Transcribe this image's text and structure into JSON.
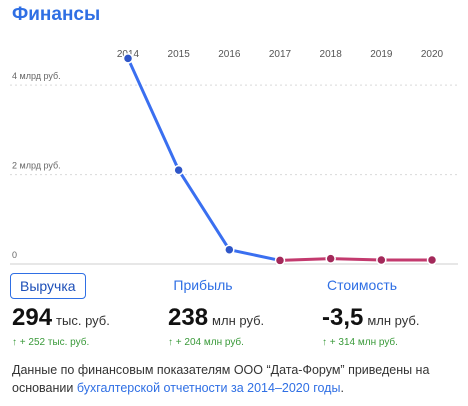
{
  "title": "Финансы",
  "tabs": [
    {
      "label": "Выручка",
      "active": true
    },
    {
      "label": "Прибыль",
      "active": false
    },
    {
      "label": "Стоимость",
      "active": false
    }
  ],
  "metrics": [
    {
      "value": "294",
      "unit": "тыс. руб.",
      "delta": "↑ + 252 тыс. руб."
    },
    {
      "value": "238",
      "unit": "млн руб.",
      "delta": "↑ + 204 млн руб."
    },
    {
      "value": "-3,5",
      "unit": "млн руб.",
      "delta": "↑ + 314 млн руб."
    }
  ],
  "footer": {
    "text": "Данные по финансовым показателям ООО “Дата-Форум” приведены на основании ",
    "link": "бухгалтерской отчетности за 2014–2020 годы",
    "end": "."
  },
  "chart_data": {
    "type": "line",
    "title": "",
    "xlabel": "",
    "ylabel": "",
    "x": [
      "2014",
      "2015",
      "2016",
      "2017",
      "2018",
      "2019",
      "2020"
    ],
    "yticks": [
      {
        "value": 0,
        "label": "0"
      },
      {
        "value": 2,
        "label": "2 млрд руб."
      },
      {
        "value": 4,
        "label": "4 млрд руб."
      }
    ],
    "ylim": [
      0,
      5.1
    ],
    "series": [
      {
        "values": [
          4.6,
          2.1,
          0.32,
          0.08,
          0.12,
          0.09,
          0.09
        ]
      }
    ],
    "colors": {
      "line": "#3a6ff0",
      "line_tail": "#c33a6e",
      "point_fill": "#2f56c8",
      "tail_point_fill": "#a3295a"
    },
    "grid": true
  }
}
